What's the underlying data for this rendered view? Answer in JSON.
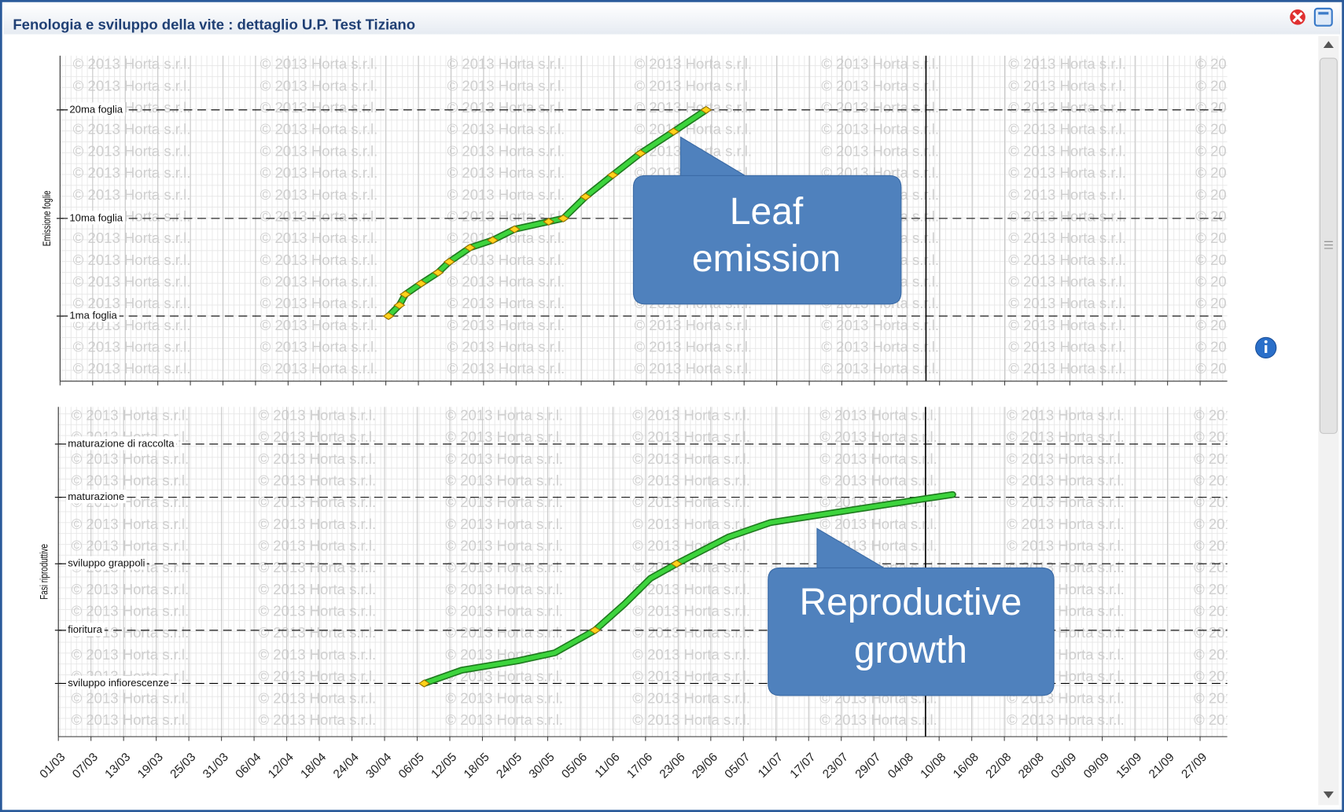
{
  "window": {
    "title": "Fenologia e sviluppo della vite : dettaglio U.P. Test Tiziano"
  },
  "watermark": "© 2013 Horta s.r.l.",
  "callouts": [
    {
      "lines": [
        "Leaf",
        "emission"
      ]
    },
    {
      "lines": [
        "Reproductive",
        "growth"
      ]
    }
  ],
  "chart_data": [
    {
      "type": "line",
      "y_label": "Emissione foglie",
      "xlim": [
        0,
        215
      ],
      "xticks": [
        0,
        6,
        12,
        18,
        24,
        30,
        36,
        42,
        48,
        54,
        60,
        66,
        72,
        78,
        84,
        90,
        96,
        102,
        108,
        114,
        120,
        126,
        132,
        138,
        144,
        150,
        156,
        162,
        168,
        174,
        180,
        186,
        192,
        198,
        204,
        210
      ],
      "ylim": [
        -5,
        25
      ],
      "yticks": [
        {
          "value": 1,
          "label": "1ma foglia"
        },
        {
          "value": 10,
          "label": "10ma foglia"
        },
        {
          "value": 20,
          "label": "20ma foglia"
        }
      ],
      "vline": 159.5,
      "series": [
        {
          "color": "#3dd43d",
          "x": [
            60.5,
            62.5,
            63.6,
            66.5,
            69.6,
            71.7,
            75.5,
            79.7,
            83.7,
            90,
            92.7,
            96.8,
            101.8,
            106.9,
            113,
            119
          ],
          "values": [
            1,
            2,
            3,
            4,
            5,
            6,
            7.3,
            8,
            9,
            9.7,
            10,
            12,
            14,
            16,
            18,
            20
          ]
        }
      ]
    },
    {
      "type": "line",
      "y_label": "Fasi riproduttive",
      "xlim": [
        0,
        215
      ],
      "xticks": [
        {
          "value": 0,
          "label": "01/03"
        },
        {
          "value": 6,
          "label": "07/03"
        },
        {
          "value": 12,
          "label": "13/03"
        },
        {
          "value": 18,
          "label": "19/03"
        },
        {
          "value": 24,
          "label": "25/03"
        },
        {
          "value": 30,
          "label": "31/03"
        },
        {
          "value": 36,
          "label": "06/04"
        },
        {
          "value": 42,
          "label": "12/04"
        },
        {
          "value": 48,
          "label": "18/04"
        },
        {
          "value": 54,
          "label": "24/04"
        },
        {
          "value": 60,
          "label": "30/04"
        },
        {
          "value": 66,
          "label": "06/05"
        },
        {
          "value": 72,
          "label": "12/05"
        },
        {
          "value": 78,
          "label": "18/05"
        },
        {
          "value": 84,
          "label": "24/05"
        },
        {
          "value": 90,
          "label": "30/05"
        },
        {
          "value": 96,
          "label": "05/06"
        },
        {
          "value": 102,
          "label": "11/06"
        },
        {
          "value": 108,
          "label": "17/06"
        },
        {
          "value": 114,
          "label": "23/06"
        },
        {
          "value": 120,
          "label": "29/06"
        },
        {
          "value": 126,
          "label": "05/07"
        },
        {
          "value": 132,
          "label": "11/07"
        },
        {
          "value": 138,
          "label": "17/07"
        },
        {
          "value": 144,
          "label": "23/07"
        },
        {
          "value": 150,
          "label": "29/07"
        },
        {
          "value": 156,
          "label": "04/08"
        },
        {
          "value": 162,
          "label": "10/08"
        },
        {
          "value": 168,
          "label": "16/08"
        },
        {
          "value": 174,
          "label": "22/08"
        },
        {
          "value": 180,
          "label": "28/08"
        },
        {
          "value": 186,
          "label": "03/09"
        },
        {
          "value": 192,
          "label": "09/09"
        },
        {
          "value": 198,
          "label": "15/09"
        },
        {
          "value": 204,
          "label": "21/09"
        },
        {
          "value": 210,
          "label": "27/09"
        }
      ],
      "ylim": [
        -4,
        20.8
      ],
      "yticks": [
        {
          "value": 0,
          "label": "sviluppo infiorescenze"
        },
        {
          "value": 4,
          "label": "fioritura"
        },
        {
          "value": 9,
          "label": "sviluppo grappoli"
        },
        {
          "value": 14,
          "label": "maturazione"
        },
        {
          "value": 18,
          "label": "maturazione di raccolta"
        }
      ],
      "vline": 159.5,
      "series": [
        {
          "color": "#3dd43d",
          "x": [
            67.3,
            74.2,
            84.5,
            91.3,
            98.7,
            104.2,
            108.9,
            113.7,
            123.2,
            131,
            146.8,
            159.5,
            164.5
          ],
          "values": [
            0,
            1,
            1.7,
            2.3,
            4,
            6,
            7.9,
            9,
            11,
            12.1,
            13.1,
            13.9,
            14.2
          ],
          "marked": [
            0,
            4,
            7
          ]
        }
      ]
    }
  ]
}
